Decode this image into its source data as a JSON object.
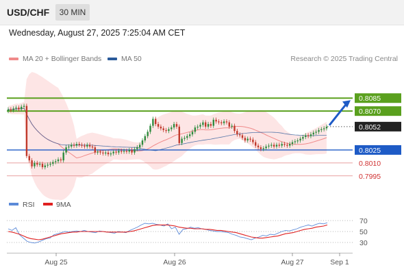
{
  "header": {
    "symbol": "USD/CHF",
    "timeframe": "30 MIN"
  },
  "datetime": "Wednesday, August 27, 2025 7:25:04 AM CET",
  "legend": {
    "ma20": {
      "label": "MA 20 + Bollinger Bands",
      "color": "#f08a8a"
    },
    "ma50": {
      "label": "MA 50",
      "color": "#2a5a9a"
    }
  },
  "research_label": "Research © 2025 Trading Central",
  "rsi_legend": {
    "rsi": {
      "label": "RSI",
      "color": "#5b8ad8"
    },
    "ma9": {
      "label": "9MA",
      "color": "#e02020"
    }
  },
  "colors": {
    "candle_up": "#2e8b3e",
    "candle_down": "#c0392b",
    "support": "#1e5bc6",
    "resistance": "#5aa01e",
    "target_arrow": "#1e5bc6"
  },
  "chart_data": [
    {
      "type": "candlestick",
      "ylim": [
        0.7975,
        0.8105
      ],
      "x_ticks": [
        "Aug 25",
        "Aug 26",
        "Aug 27",
        "Sep 1"
      ],
      "last_price": 0.8052,
      "levels": [
        {
          "value": 0.8085,
          "label": "0.8085",
          "kind": "resistance"
        },
        {
          "value": 0.807,
          "label": "0.8070",
          "kind": "resistance"
        },
        {
          "value": 0.8052,
          "label": "0.8052",
          "kind": "last"
        },
        {
          "value": 0.8025,
          "label": "0.8025",
          "kind": "pivot"
        },
        {
          "value": 0.801,
          "label": "0.8010",
          "kind": "support"
        },
        {
          "value": 0.7995,
          "label": "0.7995",
          "kind": "support"
        }
      ],
      "closes": [
        0.8072,
        0.8071,
        0.8073,
        0.8074,
        0.8072,
        0.8075,
        0.8076,
        0.8018,
        0.8013,
        0.8006,
        0.801,
        0.8008,
        0.8009,
        0.8005,
        0.8007,
        0.8008,
        0.8009,
        0.8011,
        0.8012,
        0.8014,
        0.8013,
        0.8022,
        0.8028,
        0.8029,
        0.8031,
        0.803,
        0.8032,
        0.8031,
        0.803,
        0.8029,
        0.8031,
        0.8029,
        0.8028,
        0.8022,
        0.8023,
        0.8022,
        0.8021,
        0.8022,
        0.802,
        0.8021,
        0.8023,
        0.8022,
        0.8024,
        0.8023,
        0.8024,
        0.8023,
        0.8025,
        0.8022,
        0.8026,
        0.8028,
        0.8031,
        0.8036,
        0.8041,
        0.8046,
        0.8053,
        0.8061,
        0.8055,
        0.8052,
        0.805,
        0.8048,
        0.8047,
        0.8049,
        0.8051,
        0.8055,
        0.8052,
        0.8033,
        0.8038,
        0.8039,
        0.8041,
        0.8043,
        0.8046,
        0.8051,
        0.8052,
        0.8054,
        0.8057,
        0.8052,
        0.8055,
        0.8053,
        0.806,
        0.8058,
        0.8057,
        0.8056,
        0.8058,
        0.8057,
        0.8052,
        0.8053,
        0.8047,
        0.8043,
        0.8042,
        0.8039,
        0.8036,
        0.8038,
        0.8037,
        0.8034,
        0.803,
        0.8028,
        0.8026,
        0.8027,
        0.8029,
        0.803,
        0.8031,
        0.8029,
        0.8031,
        0.803,
        0.8032,
        0.8031,
        0.803,
        0.8032,
        0.8034,
        0.8035,
        0.8036,
        0.8038,
        0.804,
        0.8042,
        0.8041,
        0.8043,
        0.8045,
        0.8046,
        0.8048,
        0.8049,
        0.805,
        0.8052
      ]
    },
    {
      "type": "line",
      "title": "RSI",
      "ylim": [
        10,
        90
      ],
      "y_ticks": [
        70,
        50,
        30
      ],
      "series": [
        {
          "name": "RSI",
          "values": [
            55,
            52,
            57,
            44,
            38,
            32,
            30,
            29,
            31,
            34,
            37,
            38,
            44,
            46,
            48,
            50,
            49,
            50,
            51,
            50,
            52,
            50,
            49,
            48,
            51,
            50,
            49,
            48,
            47,
            50,
            49,
            48,
            52,
            55,
            58,
            62,
            65,
            64,
            65,
            63,
            62,
            60,
            64,
            55,
            58,
            45,
            54,
            55,
            58,
            56,
            57,
            55,
            54,
            52,
            51,
            50,
            50,
            49,
            48,
            45,
            43,
            40,
            39,
            37,
            35,
            38,
            40,
            43,
            42,
            45,
            44,
            47,
            50,
            52,
            51,
            53,
            55,
            58,
            60,
            62,
            60,
            63,
            65,
            64,
            66
          ]
        },
        {
          "name": "9MA",
          "values": [
            50,
            49,
            47,
            45,
            42,
            39,
            37,
            36,
            35,
            36,
            38,
            40,
            42,
            44,
            46,
            47,
            48,
            49,
            49,
            50,
            50,
            50,
            50,
            50,
            50,
            50,
            49,
            49,
            49,
            49,
            49,
            49,
            50,
            51,
            53,
            55,
            57,
            59,
            61,
            62,
            62,
            62,
            62,
            61,
            60,
            58,
            57,
            56,
            56,
            55,
            55,
            55,
            54,
            54,
            53,
            52,
            52,
            51,
            50,
            49,
            48,
            46,
            44,
            42,
            40,
            39,
            38,
            38,
            39,
            40,
            41,
            42,
            44,
            46,
            47,
            48,
            50,
            52,
            54,
            55,
            56,
            58,
            59,
            60,
            62
          ]
        }
      ]
    }
  ]
}
